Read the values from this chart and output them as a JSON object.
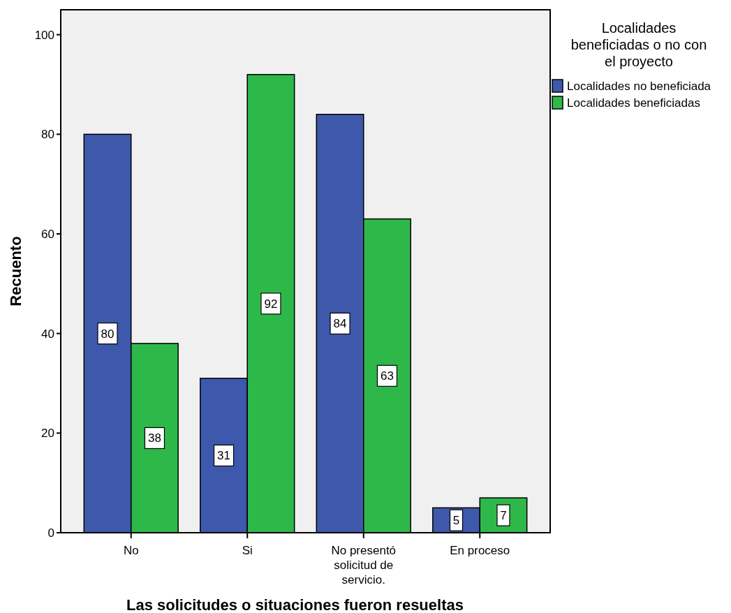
{
  "chart_data": {
    "type": "bar",
    "xlabel": "Las solicitudes o situaciones fueron resueltas",
    "ylabel": "Recuento",
    "legend_title": "Localidades beneficiadas o no con el proyecto",
    "categories": [
      "No",
      "Si",
      "No presentó solicitud de servicio.",
      "En proceso"
    ],
    "series": [
      {
        "name": "Localidades no beneficiada",
        "color": "#3e58ac",
        "values": [
          80,
          31,
          84,
          5
        ]
      },
      {
        "name": "Localidades beneficiadas",
        "color": "#2eb84a",
        "values": [
          38,
          92,
          63,
          7
        ]
      }
    ],
    "ylim": [
      0,
      105
    ],
    "yticks": [
      0,
      20,
      40,
      60,
      80,
      100
    ],
    "legend": "right",
    "data_labels": true,
    "grid": false
  }
}
